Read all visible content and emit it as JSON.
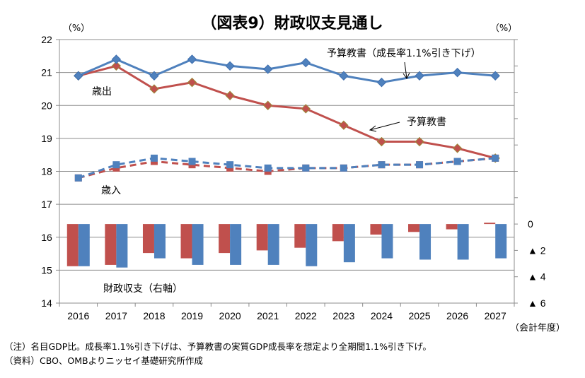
{
  "chart_data": {
    "type": "line+bar",
    "title": "（図表9）財政収支見通し",
    "left_axis": {
      "unit_label": "（%）",
      "range": [
        14,
        22
      ],
      "ticks": [
        14,
        15,
        16,
        17,
        18,
        19,
        20,
        21,
        22
      ]
    },
    "right_axis": {
      "unit_label": "（%）",
      "range": [
        -6,
        14
      ],
      "tick_step": 2,
      "tick_labels": [
        {
          "value": 0,
          "label": "0"
        },
        {
          "value": -2,
          "label": "▲ 2"
        },
        {
          "value": -4,
          "label": "▲ 4"
        },
        {
          "value": -6,
          "label": "▲ 6"
        }
      ]
    },
    "xlabel": "（会計年度）",
    "categories": [
      "2016",
      "2017",
      "2018",
      "2019",
      "2020",
      "2021",
      "2022",
      "2023",
      "2024",
      "2025",
      "2026",
      "2027"
    ],
    "series": [
      {
        "name": "歳出 予算教書",
        "type": "line",
        "axis": "left",
        "style": "solid",
        "marker": "diamond",
        "color": "#C0504D",
        "values": [
          20.9,
          21.2,
          20.5,
          20.7,
          20.3,
          20.0,
          19.9,
          19.4,
          18.9,
          18.9,
          18.7,
          18.4
        ]
      },
      {
        "name": "歳出 予算教書（成長率1.1%引き下げ）",
        "type": "line",
        "axis": "left",
        "style": "solid",
        "marker": "diamond",
        "color": "#4F81BD",
        "values": [
          20.9,
          21.4,
          20.9,
          21.4,
          21.2,
          21.1,
          21.3,
          20.9,
          20.7,
          20.9,
          21.0,
          20.9
        ]
      },
      {
        "name": "歳入 予算教書",
        "type": "line",
        "axis": "left",
        "style": "dashed",
        "marker": "square",
        "color": "#C0504D",
        "values": [
          17.8,
          18.1,
          18.3,
          18.2,
          18.1,
          18.0,
          18.1,
          18.1,
          18.2,
          18.2,
          18.3,
          18.4
        ]
      },
      {
        "name": "歳入 予算教書（成長率1.1%引き下げ）",
        "type": "line",
        "axis": "left",
        "style": "dashed",
        "marker": "square",
        "color": "#4F81BD",
        "values": [
          17.8,
          18.2,
          18.4,
          18.3,
          18.2,
          18.1,
          18.1,
          18.1,
          18.2,
          18.2,
          18.3,
          18.4
        ]
      },
      {
        "name": "財政収支 予算教書",
        "type": "bar",
        "axis": "right",
        "color": "#C0504D",
        "values": [
          -3.2,
          -3.1,
          -2.2,
          -2.6,
          -2.2,
          -2.0,
          -1.8,
          -1.3,
          -0.8,
          -0.6,
          -0.4,
          0.1
        ]
      },
      {
        "name": "財政収支 予算教書（成長率1.1%引き下げ）",
        "type": "bar",
        "axis": "right",
        "color": "#4F81BD",
        "values": [
          -3.2,
          -3.3,
          -2.6,
          -3.1,
          -3.1,
          -3.1,
          -3.2,
          -2.9,
          -2.6,
          -2.7,
          -2.7,
          -2.6
        ]
      }
    ],
    "annotations": {
      "expenditure": "歳出",
      "revenue": "歳入",
      "balance": "財政収支（右軸）",
      "budget": "予算教書",
      "budget_lowgrowth": "予算教書（成長率1.1%引き下げ）"
    },
    "grid": true,
    "legend": "none (inline annotations)"
  },
  "notes": {
    "note1": "（注）名目GDP比。成長率1.1%引き下げは、予算教書の実質GDP成長率を想定より全期間1.1%引き下げ。",
    "note2": "（資料）CBO、OMBよりニッセイ基礎研究所作成"
  }
}
